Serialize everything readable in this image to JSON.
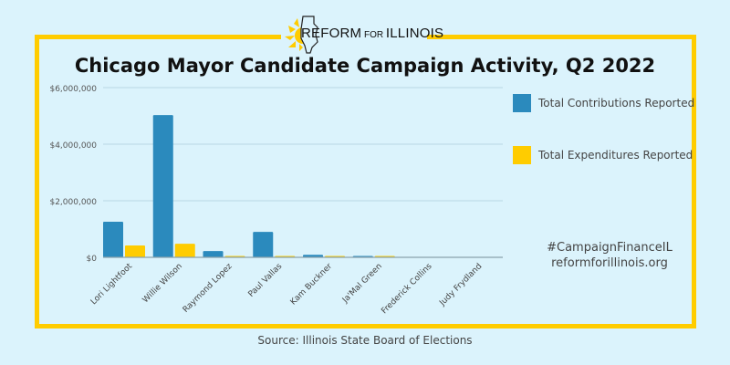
{
  "logo": {
    "text_big_1": "REFORM",
    "text_small": " FOR ",
    "text_big_2": "ILLINOIS"
  },
  "colors": {
    "frame": "#ffcc00",
    "contrib": "#2b8abd",
    "expend": "#ffcc00",
    "background": "#dbf3fc"
  },
  "hashtag": "#CampaignFinanceIL",
  "website": "reformforillinois.org",
  "source": "Source: Illinois State Board of Elections",
  "chart_data": {
    "type": "bar",
    "title": "Chicago Mayor Candidate Campaign Activity, Q2 2022",
    "xlabel": "",
    "ylabel": "",
    "ylim": [
      0,
      6000000
    ],
    "yticks": [
      0,
      2000000,
      4000000,
      6000000
    ],
    "ytick_labels": [
      "$0",
      "$2,000,000",
      "$4,000,000",
      "$6,000,000"
    ],
    "grid": true,
    "legend_position": "right",
    "categories": [
      "Lori Lightfoot",
      "Willie Wilson",
      "Raymond Lopez",
      "Paul Vallas",
      "Kam Buckner",
      "Ja'Mal Green",
      "Frederick Collins",
      "Judy Frydland"
    ],
    "series": [
      {
        "name": "Total Contributions Reported",
        "values": [
          1260000,
          5030000,
          220000,
          900000,
          90000,
          50000,
          0,
          0
        ]
      },
      {
        "name": "Total Expenditures Reported",
        "values": [
          420000,
          480000,
          10000,
          30000,
          30000,
          30000,
          0,
          0
        ]
      }
    ]
  }
}
